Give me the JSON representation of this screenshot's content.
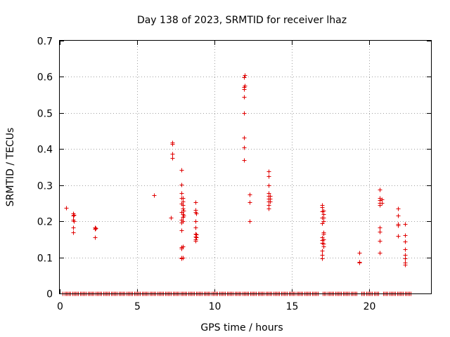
{
  "chart_data": {
    "type": "scatter",
    "title": "Day 138 of 2023, SRMTID for receiver lhaz",
    "xlabel": "GPS time / hours",
    "ylabel": "SRMTID / TECUs",
    "xlim": [
      0,
      24
    ],
    "ylim": [
      0,
      0.7
    ],
    "xticks": [
      0,
      5,
      10,
      15,
      20
    ],
    "yticks": [
      0,
      0.1,
      0.2,
      0.3,
      0.4,
      0.5,
      0.6,
      0.7
    ],
    "xtick_labels": [
      "0",
      "5",
      "10",
      "15",
      "20"
    ],
    "ytick_labels": [
      "0",
      "0.1",
      "0.2",
      "0.3",
      "0.4",
      "0.5",
      "0.6",
      "0.7"
    ],
    "grid": true,
    "marker": "+",
    "marker_color": "#e00000",
    "series": [
      {
        "name": "SRMTID",
        "points": [
          [
            0.4,
            0.238
          ],
          [
            0.85,
            0.222
          ],
          [
            0.85,
            0.215
          ],
          [
            0.85,
            0.205
          ],
          [
            0.85,
            0.183
          ],
          [
            0.85,
            0.17
          ],
          [
            0.9,
            0.218
          ],
          [
            0.9,
            0.2
          ],
          [
            2.25,
            0.183
          ],
          [
            2.25,
            0.178
          ],
          [
            2.25,
            0.155
          ],
          [
            2.3,
            0.18
          ],
          [
            6.1,
            0.273
          ],
          [
            7.2,
            0.21
          ],
          [
            7.25,
            0.418
          ],
          [
            7.25,
            0.415
          ],
          [
            7.25,
            0.387
          ],
          [
            7.25,
            0.375
          ],
          [
            7.85,
            0.342
          ],
          [
            7.85,
            0.302
          ],
          [
            7.85,
            0.278
          ],
          [
            7.85,
            0.265
          ],
          [
            7.85,
            0.248
          ],
          [
            7.85,
            0.225
          ],
          [
            7.85,
            0.205
          ],
          [
            7.85,
            0.196
          ],
          [
            7.85,
            0.175
          ],
          [
            7.85,
            0.128
          ],
          [
            7.85,
            0.125
          ],
          [
            7.85,
            0.1
          ],
          [
            7.85,
            0.097
          ],
          [
            7.95,
            0.265
          ],
          [
            7.95,
            0.255
          ],
          [
            7.95,
            0.245
          ],
          [
            7.95,
            0.235
          ],
          [
            7.95,
            0.22
          ],
          [
            7.95,
            0.212
          ],
          [
            7.95,
            0.2
          ],
          [
            7.95,
            0.13
          ],
          [
            7.95,
            0.1
          ],
          [
            8.0,
            0.23
          ],
          [
            8.0,
            0.215
          ],
          [
            8.75,
            0.252
          ],
          [
            8.75,
            0.232
          ],
          [
            8.75,
            0.225
          ],
          [
            8.75,
            0.2
          ],
          [
            8.75,
            0.183
          ],
          [
            8.75,
            0.165
          ],
          [
            8.75,
            0.158
          ],
          [
            8.75,
            0.15
          ],
          [
            8.75,
            0.145
          ],
          [
            8.8,
            0.222
          ],
          [
            8.8,
            0.163
          ],
          [
            8.8,
            0.155
          ],
          [
            11.9,
            0.598
          ],
          [
            11.9,
            0.572
          ],
          [
            11.9,
            0.565
          ],
          [
            11.9,
            0.545
          ],
          [
            11.9,
            0.5
          ],
          [
            11.9,
            0.432
          ],
          [
            11.9,
            0.405
          ],
          [
            11.9,
            0.37
          ],
          [
            11.95,
            0.605
          ],
          [
            11.95,
            0.575
          ],
          [
            12.25,
            0.275
          ],
          [
            12.25,
            0.253
          ],
          [
            12.25,
            0.2
          ],
          [
            13.5,
            0.338
          ],
          [
            13.5,
            0.325
          ],
          [
            13.5,
            0.3
          ],
          [
            13.5,
            0.278
          ],
          [
            13.5,
            0.27
          ],
          [
            13.5,
            0.262
          ],
          [
            13.5,
            0.255
          ],
          [
            13.5,
            0.245
          ],
          [
            13.5,
            0.235
          ],
          [
            13.6,
            0.27
          ],
          [
            13.6,
            0.262
          ],
          [
            13.6,
            0.255
          ],
          [
            16.95,
            0.245
          ],
          [
            16.95,
            0.24
          ],
          [
            16.95,
            0.228
          ],
          [
            16.95,
            0.21
          ],
          [
            16.95,
            0.195
          ],
          [
            16.95,
            0.155
          ],
          [
            16.95,
            0.148
          ],
          [
            16.95,
            0.14
          ],
          [
            16.95,
            0.118
          ],
          [
            16.95,
            0.107
          ],
          [
            16.95,
            0.097
          ],
          [
            17.05,
            0.23
          ],
          [
            17.05,
            0.22
          ],
          [
            17.05,
            0.21
          ],
          [
            17.05,
            0.2
          ],
          [
            17.05,
            0.17
          ],
          [
            17.05,
            0.165
          ],
          [
            17.05,
            0.15
          ],
          [
            17.05,
            0.138
          ],
          [
            17.05,
            0.13
          ],
          [
            19.35,
            0.112
          ],
          [
            19.35,
            0.088
          ],
          [
            19.35,
            0.085
          ],
          [
            20.7,
            0.287
          ],
          [
            20.7,
            0.265
          ],
          [
            20.7,
            0.258
          ],
          [
            20.7,
            0.25
          ],
          [
            20.7,
            0.245
          ],
          [
            20.7,
            0.183
          ],
          [
            20.7,
            0.172
          ],
          [
            20.7,
            0.145
          ],
          [
            20.7,
            0.113
          ],
          [
            20.8,
            0.26
          ],
          [
            20.8,
            0.25
          ],
          [
            21.85,
            0.235
          ],
          [
            21.85,
            0.215
          ],
          [
            21.85,
            0.192
          ],
          [
            21.85,
            0.188
          ],
          [
            21.85,
            0.16
          ],
          [
            22.3,
            0.193
          ],
          [
            22.3,
            0.162
          ],
          [
            22.3,
            0.143
          ],
          [
            22.3,
            0.122
          ],
          [
            22.3,
            0.107
          ],
          [
            22.3,
            0.098
          ],
          [
            22.3,
            0.085
          ],
          [
            22.3,
            0.08
          ]
        ]
      },
      {
        "name": "SRMTID zero baseline",
        "x_start": 0.2,
        "x_end": 22.7,
        "x_step": 0.1,
        "x_gaps": [
          [
            16.8,
            16.95
          ],
          [
            19.3,
            19.4
          ],
          [
            20.65,
            20.8
          ]
        ],
        "y": 0
      }
    ]
  }
}
